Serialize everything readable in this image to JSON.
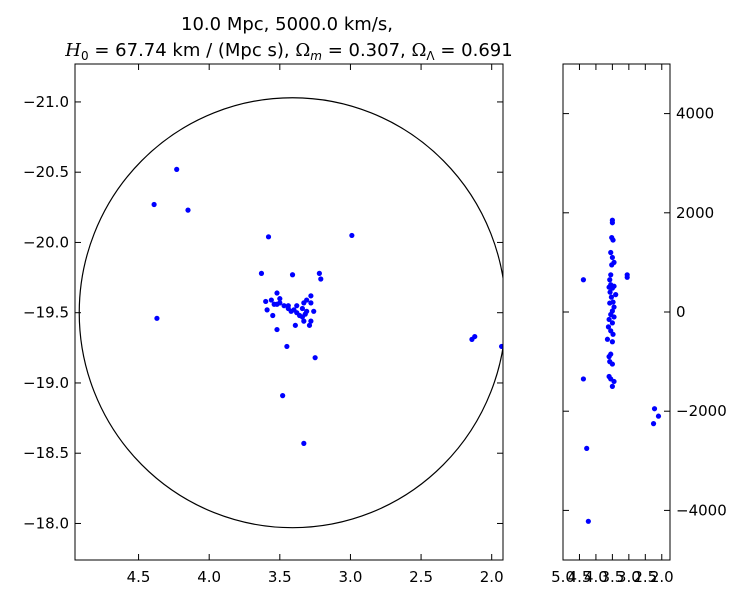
{
  "title": {
    "line1": "10.0 Mpc, 5000.0 km/s,",
    "line2_parts": {
      "h0_sym": "H",
      "h0_sub": "0",
      "h0_val": " = 67.74 km / (Mpc s), ",
      "om_sym": "Ω",
      "om_sub": "m",
      "om_val": " = 0.307, ",
      "ol_sym": "Ω",
      "ol_sub": "Λ",
      "ol_val": " = 0.691"
    }
  },
  "colors": {
    "points": "#0000ff",
    "circle": "#000000",
    "axes": "#000000"
  },
  "chart_data": [
    {
      "type": "scatter",
      "panel": "main",
      "xlim": [
        4.95,
        1.92
      ],
      "ylim": [
        -21.27,
        -17.74
      ],
      "x_ticks": [
        4.5,
        4.0,
        3.5,
        3.0,
        2.5,
        2.0
      ],
      "x_tick_labels": [
        "4.5",
        "4.0",
        "3.5",
        "3.0",
        "2.5",
        "2.0"
      ],
      "y_ticks": [
        -18.0,
        -18.5,
        -19.0,
        -19.5,
        -20.0,
        -20.5,
        -21.0
      ],
      "y_tick_labels": [
        "−18.0",
        "−18.5",
        "−19.0",
        "−19.5",
        "−20.0",
        "−20.5",
        "−21.0"
      ],
      "circle": {
        "center": [
          3.41,
          -19.5
        ],
        "radius_x": 1.51,
        "radius_y": 1.53
      },
      "points": [
        [
          3.33,
          -18.57
        ],
        [
          3.48,
          -18.91
        ],
        [
          3.25,
          -19.18
        ],
        [
          3.45,
          -19.26
        ],
        [
          1.93,
          -19.26
        ],
        [
          2.14,
          -19.31
        ],
        [
          2.12,
          -19.33
        ],
        [
          3.52,
          -19.38
        ],
        [
          3.39,
          -19.41
        ],
        [
          3.29,
          -19.41
        ],
        [
          3.33,
          -19.44
        ],
        [
          3.28,
          -19.44
        ],
        [
          4.37,
          -19.46
        ],
        [
          3.55,
          -19.48
        ],
        [
          3.34,
          -19.47
        ],
        [
          3.36,
          -19.48
        ],
        [
          3.32,
          -19.49
        ],
        [
          3.38,
          -19.5
        ],
        [
          3.42,
          -19.51
        ],
        [
          3.31,
          -19.51
        ],
        [
          3.26,
          -19.51
        ],
        [
          3.59,
          -19.52
        ],
        [
          3.4,
          -19.52
        ],
        [
          3.44,
          -19.53
        ],
        [
          3.34,
          -19.53
        ],
        [
          3.47,
          -19.55
        ],
        [
          3.44,
          -19.55
        ],
        [
          3.38,
          -19.55
        ],
        [
          3.52,
          -19.56
        ],
        [
          3.54,
          -19.56
        ],
        [
          3.5,
          -19.57
        ],
        [
          3.33,
          -19.57
        ],
        [
          3.28,
          -19.57
        ],
        [
          3.6,
          -19.58
        ],
        [
          3.56,
          -19.59
        ],
        [
          3.31,
          -19.59
        ],
        [
          3.5,
          -19.6
        ],
        [
          3.28,
          -19.62
        ],
        [
          3.52,
          -19.64
        ],
        [
          3.21,
          -19.74
        ],
        [
          3.41,
          -19.77
        ],
        [
          3.22,
          -19.78
        ],
        [
          3.63,
          -19.78
        ],
        [
          3.58,
          -20.04
        ],
        [
          2.99,
          -20.05
        ],
        [
          4.15,
          -20.23
        ],
        [
          4.39,
          -20.27
        ],
        [
          4.23,
          -20.52
        ]
      ]
    },
    {
      "type": "scatter",
      "panel": "side",
      "xlim": [
        5.0,
        1.75
      ],
      "ylim": [
        -5000,
        5000
      ],
      "x_tick_labels": [
        "5.0",
        "4.5",
        "4.0",
        "3.5",
        "3.0",
        "2.5",
        "2.0"
      ],
      "y_ticks": [
        4000,
        2000,
        0,
        -2000,
        -4000
      ],
      "y_tick_labels": [
        "4000",
        "2000",
        "0",
        "−2000",
        "−4000"
      ],
      "points": [
        [
          3.5,
          1850
        ],
        [
          3.5,
          1800
        ],
        [
          3.52,
          1500
        ],
        [
          3.48,
          1450
        ],
        [
          3.55,
          1200
        ],
        [
          3.5,
          1100
        ],
        [
          3.45,
          1000
        ],
        [
          3.52,
          950
        ],
        [
          3.05,
          750
        ],
        [
          3.05,
          700
        ],
        [
          3.55,
          750
        ],
        [
          3.58,
          650
        ],
        [
          4.38,
          650
        ],
        [
          3.55,
          550
        ],
        [
          3.45,
          520
        ],
        [
          3.6,
          500
        ],
        [
          3.5,
          480
        ],
        [
          3.57,
          400
        ],
        [
          3.4,
          350
        ],
        [
          3.53,
          300
        ],
        [
          3.48,
          200
        ],
        [
          3.58,
          180
        ],
        [
          3.45,
          100
        ],
        [
          3.5,
          20
        ],
        [
          3.55,
          -50
        ],
        [
          3.45,
          -100
        ],
        [
          3.6,
          -150
        ],
        [
          3.5,
          -220
        ],
        [
          3.62,
          -300
        ],
        [
          3.55,
          -380
        ],
        [
          3.48,
          -450
        ],
        [
          3.65,
          -550
        ],
        [
          3.5,
          -600
        ],
        [
          3.55,
          -850
        ],
        [
          3.6,
          -900
        ],
        [
          3.58,
          -1000
        ],
        [
          3.5,
          -1050
        ],
        [
          3.6,
          -1300
        ],
        [
          3.55,
          -1350
        ],
        [
          3.45,
          -1400
        ],
        [
          3.5,
          -1500
        ],
        [
          4.38,
          -1350
        ],
        [
          2.22,
          -1950
        ],
        [
          2.1,
          -2100
        ],
        [
          2.25,
          -2250
        ],
        [
          4.28,
          -2750
        ],
        [
          4.23,
          -4220
        ]
      ]
    }
  ]
}
